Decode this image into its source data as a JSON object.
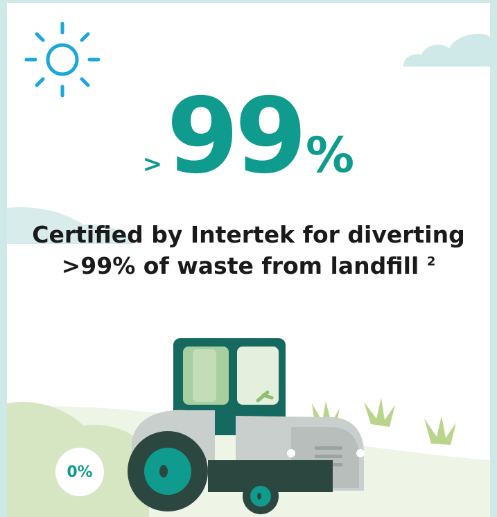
{
  "stat": {
    "prefix": ">",
    "value": "99",
    "suffix": "%"
  },
  "headline": {
    "line1": "Certified by Intertek for diverting",
    "line2": ">99% of waste from landfill",
    "footnote": "2"
  },
  "badge": {
    "label": "0%"
  },
  "icons": [
    "sun-icon",
    "cloud-icon",
    "tractor-icon",
    "grass-icon"
  ],
  "colors": {
    "accent_teal": "#0f9b8e",
    "sun_blue": "#1aa7d9",
    "cloud": "#cfe8e8",
    "hill_green": "#d6e6c3",
    "tractor_dark": "#16695e",
    "tractor_grey": "#c9cfcc"
  }
}
